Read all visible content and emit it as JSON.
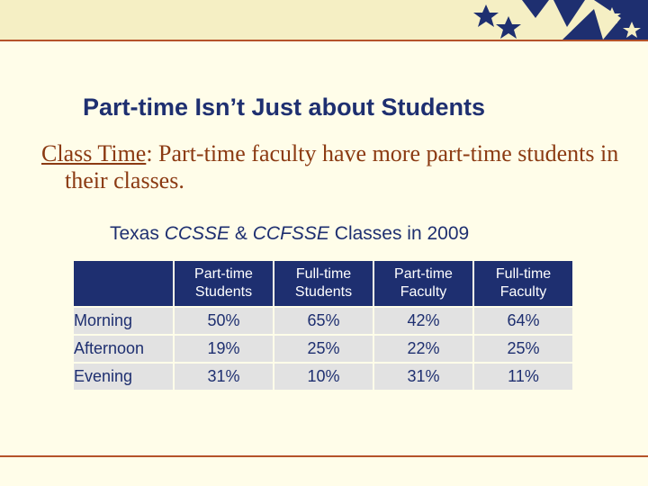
{
  "slide": {
    "title": "Part-time Isn’t Just about Students",
    "bullet_term": "Class Time",
    "bullet_text": ": Part-time faculty have more part-time students in their classes.",
    "caption_prefix": "Texas ",
    "caption_ccsse": "CCSSE",
    "caption_amp": " & ",
    "caption_ccfsse": "CCFSSE",
    "caption_suffix": " Classes in 2009"
  },
  "table": {
    "headers": [
      "Part-time Students",
      "Full-time Students",
      "Part-time Faculty",
      "Full-time Faculty"
    ],
    "rows": [
      {
        "label": "Morning",
        "values": [
          "50%",
          "65%",
          "42%",
          "64%"
        ]
      },
      {
        "label": "Afternoon",
        "values": [
          "19%",
          "25%",
          "22%",
          "25%"
        ]
      },
      {
        "label": "Evening",
        "values": [
          "31%",
          "10%",
          "31%",
          "11%"
        ]
      }
    ]
  },
  "colors": {
    "title": "#1e2f70",
    "body_text": "#8b3a12",
    "header_bg": "#1e2f70",
    "cell_bg": "#e2e2e2",
    "accent_line": "#b5532a",
    "background": "#fffde9"
  }
}
